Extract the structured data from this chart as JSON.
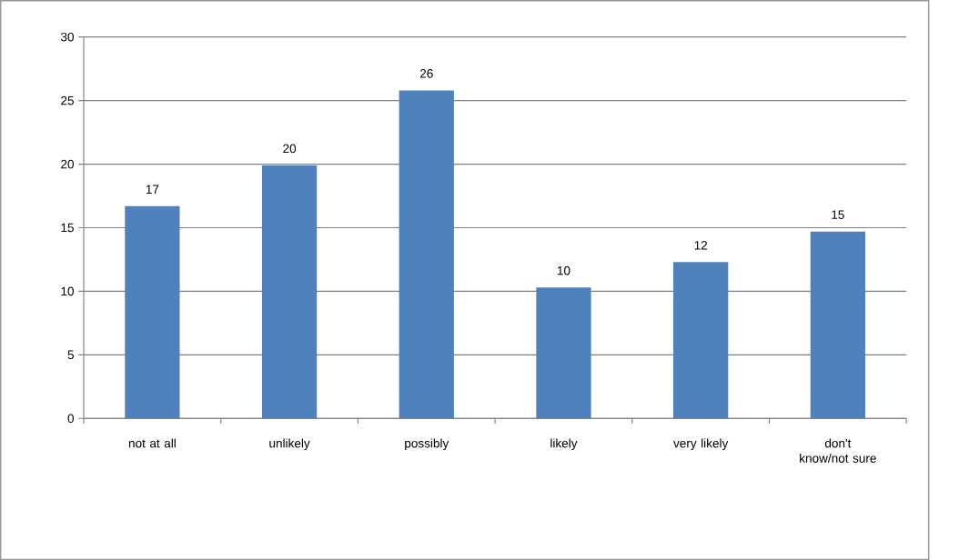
{
  "chart_data": {
    "type": "bar",
    "categories": [
      "not at all",
      "unlikely",
      "possibly",
      "likely",
      "very likely",
      "don't know/not sure"
    ],
    "values": [
      16.7,
      19.9,
      25.8,
      10.3,
      12.3,
      14.7
    ],
    "value_labels": [
      "17",
      "20",
      "26",
      "10",
      "12",
      "15"
    ],
    "color": "#4f81bd",
    "ylim": [
      0,
      30
    ],
    "yticks": [
      0,
      5,
      10,
      15,
      20,
      25,
      30
    ],
    "grid": "y"
  }
}
